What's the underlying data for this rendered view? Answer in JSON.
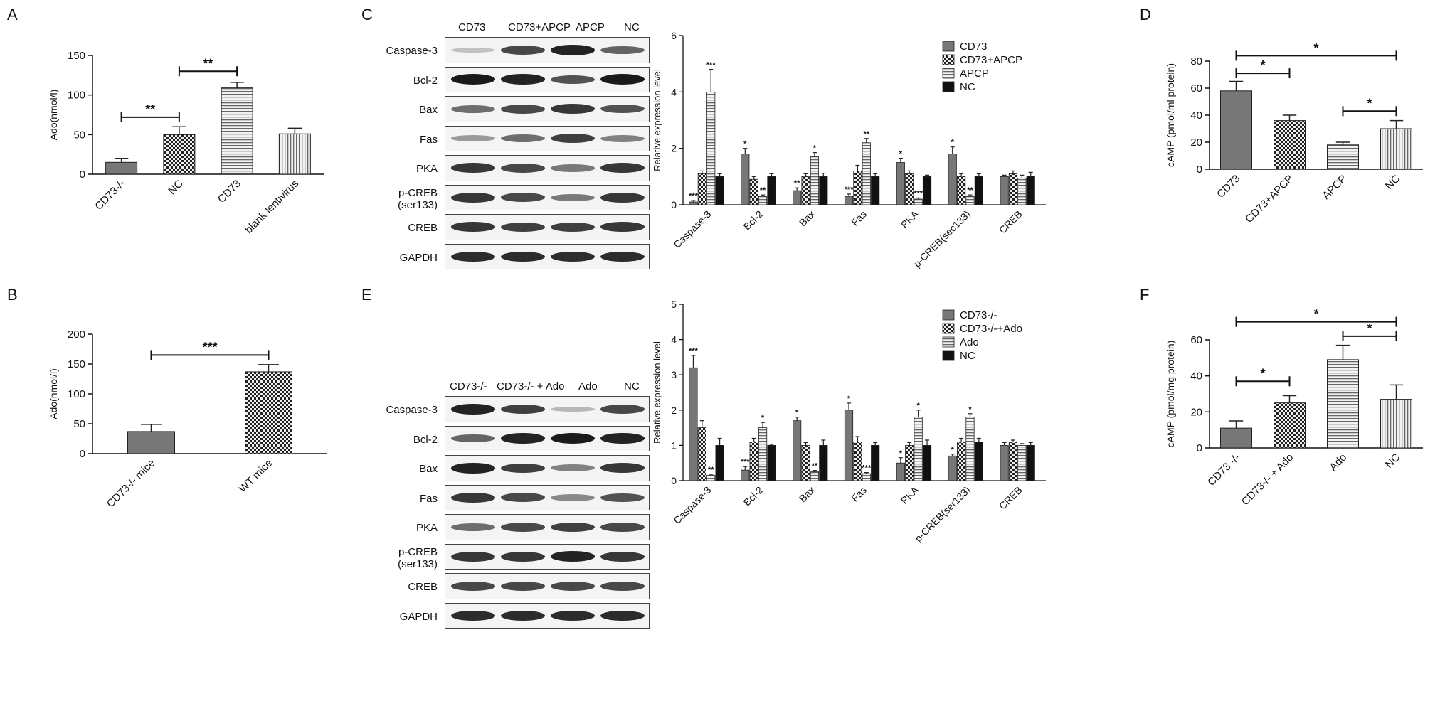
{
  "colors": {
    "dark_gray": "#777777",
    "check": "#222222",
    "hstripe": "#666666",
    "vstripe": "#666666",
    "black": "#111111",
    "gray_light": "#9a9a9a"
  },
  "panel_letters": {
    "A": "A",
    "B": "B",
    "C": "C",
    "D": "D",
    "E": "E",
    "F": "F"
  },
  "chart_data": [
    {
      "id": "A",
      "type": "bar",
      "categories": [
        "CD73-/-",
        "NC",
        "CD73",
        "blank lentivirus"
      ],
      "values": [
        15,
        50,
        109,
        51
      ],
      "errors": [
        5,
        10,
        7,
        7
      ],
      "fills": [
        "dark_gray",
        "check",
        "hstripe",
        "vstripe"
      ],
      "ylabel": "Ado(nmol/l)",
      "ylim": [
        0,
        150
      ],
      "yticks": [
        0,
        50,
        100,
        150
      ],
      "sig": [
        {
          "from": 0,
          "to": 1,
          "y": 72,
          "label": "**"
        },
        {
          "from": 1,
          "to": 2,
          "y": 130,
          "label": "**"
        }
      ]
    },
    {
      "id": "B",
      "type": "bar",
      "categories": [
        "CD73-/- mice",
        "WT mice"
      ],
      "values": [
        37,
        137
      ],
      "errors": [
        12,
        12
      ],
      "fills": [
        "dark_gray",
        "check"
      ],
      "ylabel": "Ado(nmol/l)",
      "ylim": [
        0,
        200
      ],
      "yticks": [
        0,
        50,
        100,
        150,
        200
      ],
      "sig": [
        {
          "from": 0,
          "to": 1,
          "y": 165,
          "label": "***"
        }
      ]
    },
    {
      "id": "C",
      "type": "bar",
      "categories": [
        "Caspase-3",
        "Bcl-2",
        "Bax",
        "Fas",
        "PKA",
        "p-CREB(sec133)",
        "CREB"
      ],
      "series": [
        {
          "name": "CD73",
          "fill": "dark_gray",
          "values": [
            0.1,
            1.8,
            0.5,
            0.3,
            1.5,
            1.8,
            1.0
          ],
          "errors": [
            0.05,
            0.2,
            0.1,
            0.08,
            0.15,
            0.25,
            0.05
          ],
          "stars": [
            "***",
            "*",
            "**",
            "***",
            "*",
            "*",
            ""
          ]
        },
        {
          "name": "CD73+APCP",
          "fill": "check",
          "values": [
            1.1,
            0.9,
            1.0,
            1.2,
            1.1,
            1.0,
            1.1
          ],
          "errors": [
            0.1,
            0.1,
            0.1,
            0.2,
            0.1,
            0.1,
            0.1
          ],
          "stars": [
            "",
            "",
            "",
            "",
            "",
            "",
            ""
          ]
        },
        {
          "name": "APCP",
          "fill": "hstripe",
          "values": [
            4.0,
            0.3,
            1.7,
            2.2,
            0.2,
            0.3,
            0.95
          ],
          "errors": [
            0.8,
            0.05,
            0.15,
            0.15,
            0.04,
            0.05,
            0.1
          ],
          "stars": [
            "***",
            "**",
            "*",
            "**",
            "***",
            "**",
            ""
          ]
        },
        {
          "name": "NC",
          "fill": "black",
          "values": [
            1.0,
            1.0,
            1.0,
            1.0,
            1.0,
            1.0,
            1.0
          ],
          "errors": [
            0.1,
            0.1,
            0.12,
            0.1,
            0.05,
            0.1,
            0.15
          ],
          "stars": [
            "",
            "",
            "",
            "",
            "",
            "",
            ""
          ]
        }
      ],
      "ylabel": "Relative expression level",
      "ylim": [
        0,
        6
      ],
      "yticks": [
        0,
        2,
        4,
        6
      ],
      "legend": "top-right"
    },
    {
      "id": "D",
      "type": "bar",
      "categories": [
        "CD73",
        "CD73+APCP",
        "APCP",
        "NC"
      ],
      "values": [
        58,
        36,
        18,
        30
      ],
      "errors": [
        7,
        4,
        2,
        6
      ],
      "fills": [
        "dark_gray",
        "check",
        "hstripe",
        "vstripe"
      ],
      "ylabel": "cAMP (pmol/ml protein)",
      "ylim": [
        0,
        80
      ],
      "yticks": [
        0,
        20,
        40,
        60,
        80
      ],
      "sig": [
        {
          "from": 0,
          "to": 3,
          "y": 84,
          "label": "*"
        },
        {
          "from": 0,
          "to": 1,
          "y": 71,
          "label": "*"
        },
        {
          "from": 2,
          "to": 3,
          "y": 43,
          "label": "*"
        }
      ]
    },
    {
      "id": "E",
      "type": "bar",
      "categories": [
        "Caspase-3",
        "Bcl-2",
        "Bax",
        "Fas",
        "PKA",
        "p-CREB(ser133)",
        "CREB"
      ],
      "series": [
        {
          "name": "CD73-/-",
          "fill": "dark_gray",
          "values": [
            3.2,
            0.3,
            1.7,
            2.0,
            0.5,
            0.7,
            1.0
          ],
          "errors": [
            0.35,
            0.1,
            0.1,
            0.2,
            0.15,
            0.05,
            0.08
          ],
          "stars": [
            "***",
            "***",
            "*",
            "*",
            "*",
            "*",
            ""
          ]
        },
        {
          "name": "CD73-/-+Ado",
          "fill": "check",
          "values": [
            1.5,
            1.1,
            1.0,
            1.1,
            1.0,
            1.1,
            1.1
          ],
          "errors": [
            0.2,
            0.1,
            0.08,
            0.15,
            0.08,
            0.1,
            0.05
          ],
          "stars": [
            "",
            "",
            "",
            "",
            "",
            "",
            ""
          ]
        },
        {
          "name": "Ado",
          "fill": "hstripe",
          "values": [
            0.15,
            1.5,
            0.25,
            0.2,
            1.8,
            1.8,
            1.0
          ],
          "errors": [
            0.03,
            0.15,
            0.04,
            0.03,
            0.2,
            0.1,
            0.05
          ],
          "stars": [
            "**",
            "*",
            "**",
            "***",
            "*",
            "*",
            ""
          ]
        },
        {
          "name": "NC",
          "fill": "black",
          "values": [
            1.0,
            1.0,
            1.0,
            1.0,
            1.0,
            1.1,
            1.0
          ],
          "errors": [
            0.2,
            0.03,
            0.15,
            0.08,
            0.15,
            0.1,
            0.08
          ],
          "stars": [
            "",
            "",
            "",
            "",
            "",
            "",
            ""
          ]
        }
      ],
      "ylabel": "Relative expression level",
      "ylim": [
        0,
        5
      ],
      "yticks": [
        0,
        1,
        2,
        3,
        4,
        5
      ],
      "legend": "top-right"
    },
    {
      "id": "F",
      "type": "bar",
      "categories": [
        "CD73 -/-",
        "CD73-/- + Ado",
        "Ado",
        "NC"
      ],
      "values": [
        11,
        25,
        49,
        27
      ],
      "errors": [
        4,
        4,
        8,
        8
      ],
      "fills": [
        "dark_gray",
        "check",
        "hstripe",
        "vstripe"
      ],
      "ylabel": "cAMP (pmol/mg protein)",
      "ylim": [
        0,
        60
      ],
      "yticks": [
        0,
        20,
        40,
        60
      ],
      "sig": [
        {
          "from": 0,
          "to": 3,
          "y": 70,
          "label": "*"
        },
        {
          "from": 0,
          "to": 1,
          "y": 37,
          "label": "*"
        },
        {
          "from": 2,
          "to": 3,
          "y": 62,
          "label": "*"
        }
      ]
    }
  ],
  "blots": {
    "C": {
      "lanes": [
        "CD73",
        "CD73+APCP",
        "APCP",
        "NC"
      ],
      "rows": [
        {
          "label": "Caspase-3",
          "intensity": [
            0.1,
            0.75,
            0.95,
            0.6
          ]
        },
        {
          "label": "Bcl-2",
          "intensity": [
            1.0,
            0.95,
            0.7,
            1.0
          ]
        },
        {
          "label": "Bax",
          "intensity": [
            0.55,
            0.75,
            0.85,
            0.7
          ]
        },
        {
          "label": "Fas",
          "intensity": [
            0.3,
            0.55,
            0.8,
            0.45
          ]
        },
        {
          "label": "PKA",
          "intensity": [
            0.85,
            0.75,
            0.5,
            0.85
          ]
        },
        {
          "label": "p-CREB\n(ser133)",
          "intensity": [
            0.85,
            0.75,
            0.5,
            0.85
          ]
        },
        {
          "label": "CREB",
          "intensity": [
            0.85,
            0.8,
            0.8,
            0.85
          ]
        },
        {
          "label": "GAPDH",
          "intensity": [
            0.9,
            0.9,
            0.9,
            0.9
          ]
        }
      ]
    },
    "E": {
      "lanes": [
        "CD73-/-",
        "CD73-/- + Ado",
        "Ado",
        "NC"
      ],
      "lanes_text": "CD73-/- CD73-/- + Ado  Ado        NC",
      "rows": [
        {
          "label": "Caspase-3",
          "intensity": [
            0.95,
            0.8,
            0.15,
            0.75
          ]
        },
        {
          "label": "Bcl-2",
          "intensity": [
            0.6,
            0.95,
            1.0,
            0.95
          ]
        },
        {
          "label": "Bax",
          "intensity": [
            0.95,
            0.8,
            0.45,
            0.85
          ]
        },
        {
          "label": "Fas",
          "intensity": [
            0.85,
            0.75,
            0.4,
            0.7
          ]
        },
        {
          "label": "PKA",
          "intensity": [
            0.55,
            0.75,
            0.8,
            0.75
          ]
        },
        {
          "label": "p-CREB\n(ser133)",
          "intensity": [
            0.85,
            0.85,
            0.95,
            0.85
          ]
        },
        {
          "label": "CREB",
          "intensity": [
            0.75,
            0.75,
            0.75,
            0.75
          ]
        },
        {
          "label": "GAPDH",
          "intensity": [
            0.9,
            0.9,
            0.9,
            0.9
          ]
        }
      ]
    }
  }
}
